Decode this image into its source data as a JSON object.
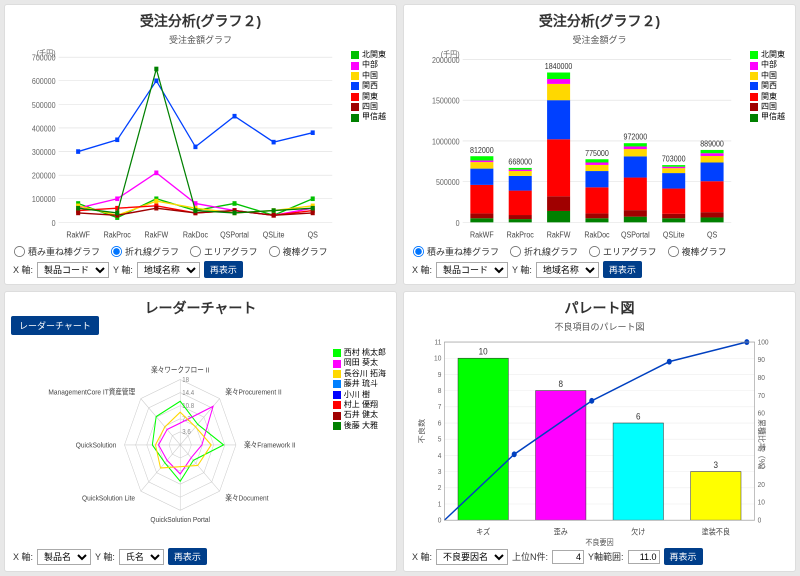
{
  "line_chart": {
    "title": "受注分析(グラフ２)",
    "subtitle": "受注金額グラフ",
    "yUnit": "(千円)",
    "categories": [
      "RakWF",
      "RakProc",
      "RakFW",
      "RakDoc",
      "QSPortal",
      "QSLite",
      "QS"
    ],
    "yticks": [
      0,
      100000,
      200000,
      300000,
      400000,
      500000,
      600000,
      700000
    ],
    "series": [
      {
        "name": "北関東",
        "color": "#00c000",
        "values": [
          80000,
          20000,
          100000,
          50000,
          80000,
          30000,
          100000
        ]
      },
      {
        "name": "中部",
        "color": "#ff00ff",
        "values": [
          60000,
          100000,
          210000,
          80000,
          50000,
          30000,
          60000
        ]
      },
      {
        "name": "中国",
        "color": "#ffd800",
        "values": [
          70000,
          30000,
          90000,
          60000,
          40000,
          50000,
          70000
        ]
      },
      {
        "name": "関西",
        "color": "#0040ff",
        "values": [
          300000,
          350000,
          600000,
          320000,
          450000,
          340000,
          380000
        ]
      },
      {
        "name": "関東",
        "color": "#ff0000",
        "values": [
          50000,
          60000,
          70000,
          40000,
          50000,
          30000,
          50000
        ]
      },
      {
        "name": "四国",
        "color": "#a00000",
        "values": [
          40000,
          30000,
          60000,
          40000,
          50000,
          30000,
          40000
        ]
      },
      {
        "name": "甲信越",
        "color": "#008000",
        "values": [
          60000,
          40000,
          650000,
          50000,
          40000,
          50000,
          60000
        ]
      }
    ],
    "radios": [
      "積み重ね棒グラフ",
      "折れ線グラフ",
      "エリアグラフ",
      "複棒グラフ"
    ],
    "radio_selected": 1,
    "xaxis_lbl": "X 軸:",
    "yaxis_lbl": "Y 軸:",
    "xsel": "製品コード",
    "ysel": "地域名称",
    "btn": "再表示"
  },
  "bar_chart": {
    "title": "受注分析(グラフ２)",
    "subtitle": "受注金額グラ",
    "yUnit": "(千円)",
    "categories": [
      "RakWF",
      "RakProc",
      "RakFW",
      "RakDoc",
      "QSPortal",
      "QSLite",
      "QS"
    ],
    "totals": [
      812000,
      668000,
      1840000,
      775000,
      972000,
      703000,
      889000
    ],
    "ymax": 2000000,
    "yticks": [
      0,
      500000,
      1000000,
      1500000,
      2000000
    ],
    "series": [
      {
        "name": "北関東",
        "color": "#00ff00"
      },
      {
        "name": "中部",
        "color": "#ff00ff"
      },
      {
        "name": "中国",
        "color": "#ffd800"
      },
      {
        "name": "関西",
        "color": "#0040ff"
      },
      {
        "name": "関東",
        "color": "#ff0000"
      },
      {
        "name": "四国",
        "color": "#a00000"
      },
      {
        "name": "甲信越",
        "color": "#008000"
      }
    ],
    "stacks": [
      [
        50,
        60,
        350,
        200,
        80,
        20,
        52
      ],
      [
        40,
        50,
        300,
        180,
        60,
        18,
        20
      ],
      [
        140,
        180,
        700,
        480,
        200,
        60,
        80
      ],
      [
        50,
        60,
        320,
        200,
        75,
        30,
        40
      ],
      [
        70,
        80,
        400,
        260,
        90,
        32,
        40
      ],
      [
        50,
        55,
        310,
        190,
        60,
        18,
        20
      ],
      [
        60,
        65,
        380,
        230,
        80,
        34,
        40
      ]
    ],
    "radios": [
      "積み重ね棒グラフ",
      "折れ線グラフ",
      "エリアグラフ",
      "複棒グラフ"
    ],
    "radio_selected": 0,
    "xaxis_lbl": "X 軸:",
    "yaxis_lbl": "Y 軸:",
    "xsel": "製品コード",
    "ysel": "地域名称",
    "btn": "再表示"
  },
  "radar_chart": {
    "title": "レーダーチャート",
    "tab": "レーダーチャート",
    "axes": [
      "楽々ワークフロー II",
      "楽々Procurement II",
      "楽々Framework II",
      "楽々Document",
      "QuickSolution Portal",
      "QuickSolution Lite",
      "QuickSolution",
      "ManagementCore IT資産管理"
    ],
    "ticks": [
      3.6,
      7.2,
      10.8,
      14.4,
      18
    ],
    "series": [
      {
        "name": "西村 桃太郎",
        "color": "#00ff00"
      },
      {
        "name": "岡田 葵太",
        "color": "#ff00ff"
      },
      {
        "name": "長谷川 拓海",
        "color": "#ffd800"
      },
      {
        "name": "藤井 琉斗",
        "color": "#0080ff"
      },
      {
        "name": "小川 樹",
        "color": "#0000ff"
      },
      {
        "name": "村上 優翔",
        "color": "#ff0000"
      },
      {
        "name": "石井 健太",
        "color": "#a00000"
      },
      {
        "name": "後藤 大雅",
        "color": "#008000"
      }
    ],
    "xaxis_lbl": "X 軸:",
    "yaxis_lbl": "Y 軸:",
    "xsel": "製品名",
    "ysel": "氏名",
    "btn": "再表示"
  },
  "pareto": {
    "title": "パレート図",
    "subtitle": "不良項目のパレート図",
    "categories": [
      "キズ",
      "歪み",
      "欠け",
      "塗装不良"
    ],
    "values": [
      10,
      8,
      6,
      3
    ],
    "colors": [
      "#00ff00",
      "#ff00ff",
      "#00ffff",
      "#ffff00"
    ],
    "cumulative": [
      37,
      67,
      89,
      100
    ],
    "yticks": [
      0,
      1,
      2,
      3,
      4,
      5,
      6,
      7,
      8,
      9,
      10,
      11
    ],
    "y2ticks": [
      0,
      10,
      20,
      30,
      40,
      50,
      60,
      70,
      80,
      90,
      100
    ],
    "ylabel": "不良数",
    "xlabel": "不良要因",
    "y2label": "累積比率（%）",
    "line_color": "#0040c0",
    "xaxis_lbl": "X 軸:",
    "topn_lbl": "上位N件:",
    "yrange_lbl": "Y軸範囲:",
    "xsel": "不良要因名",
    "topn": "4",
    "yrange": "11.0",
    "btn": "再表示"
  }
}
